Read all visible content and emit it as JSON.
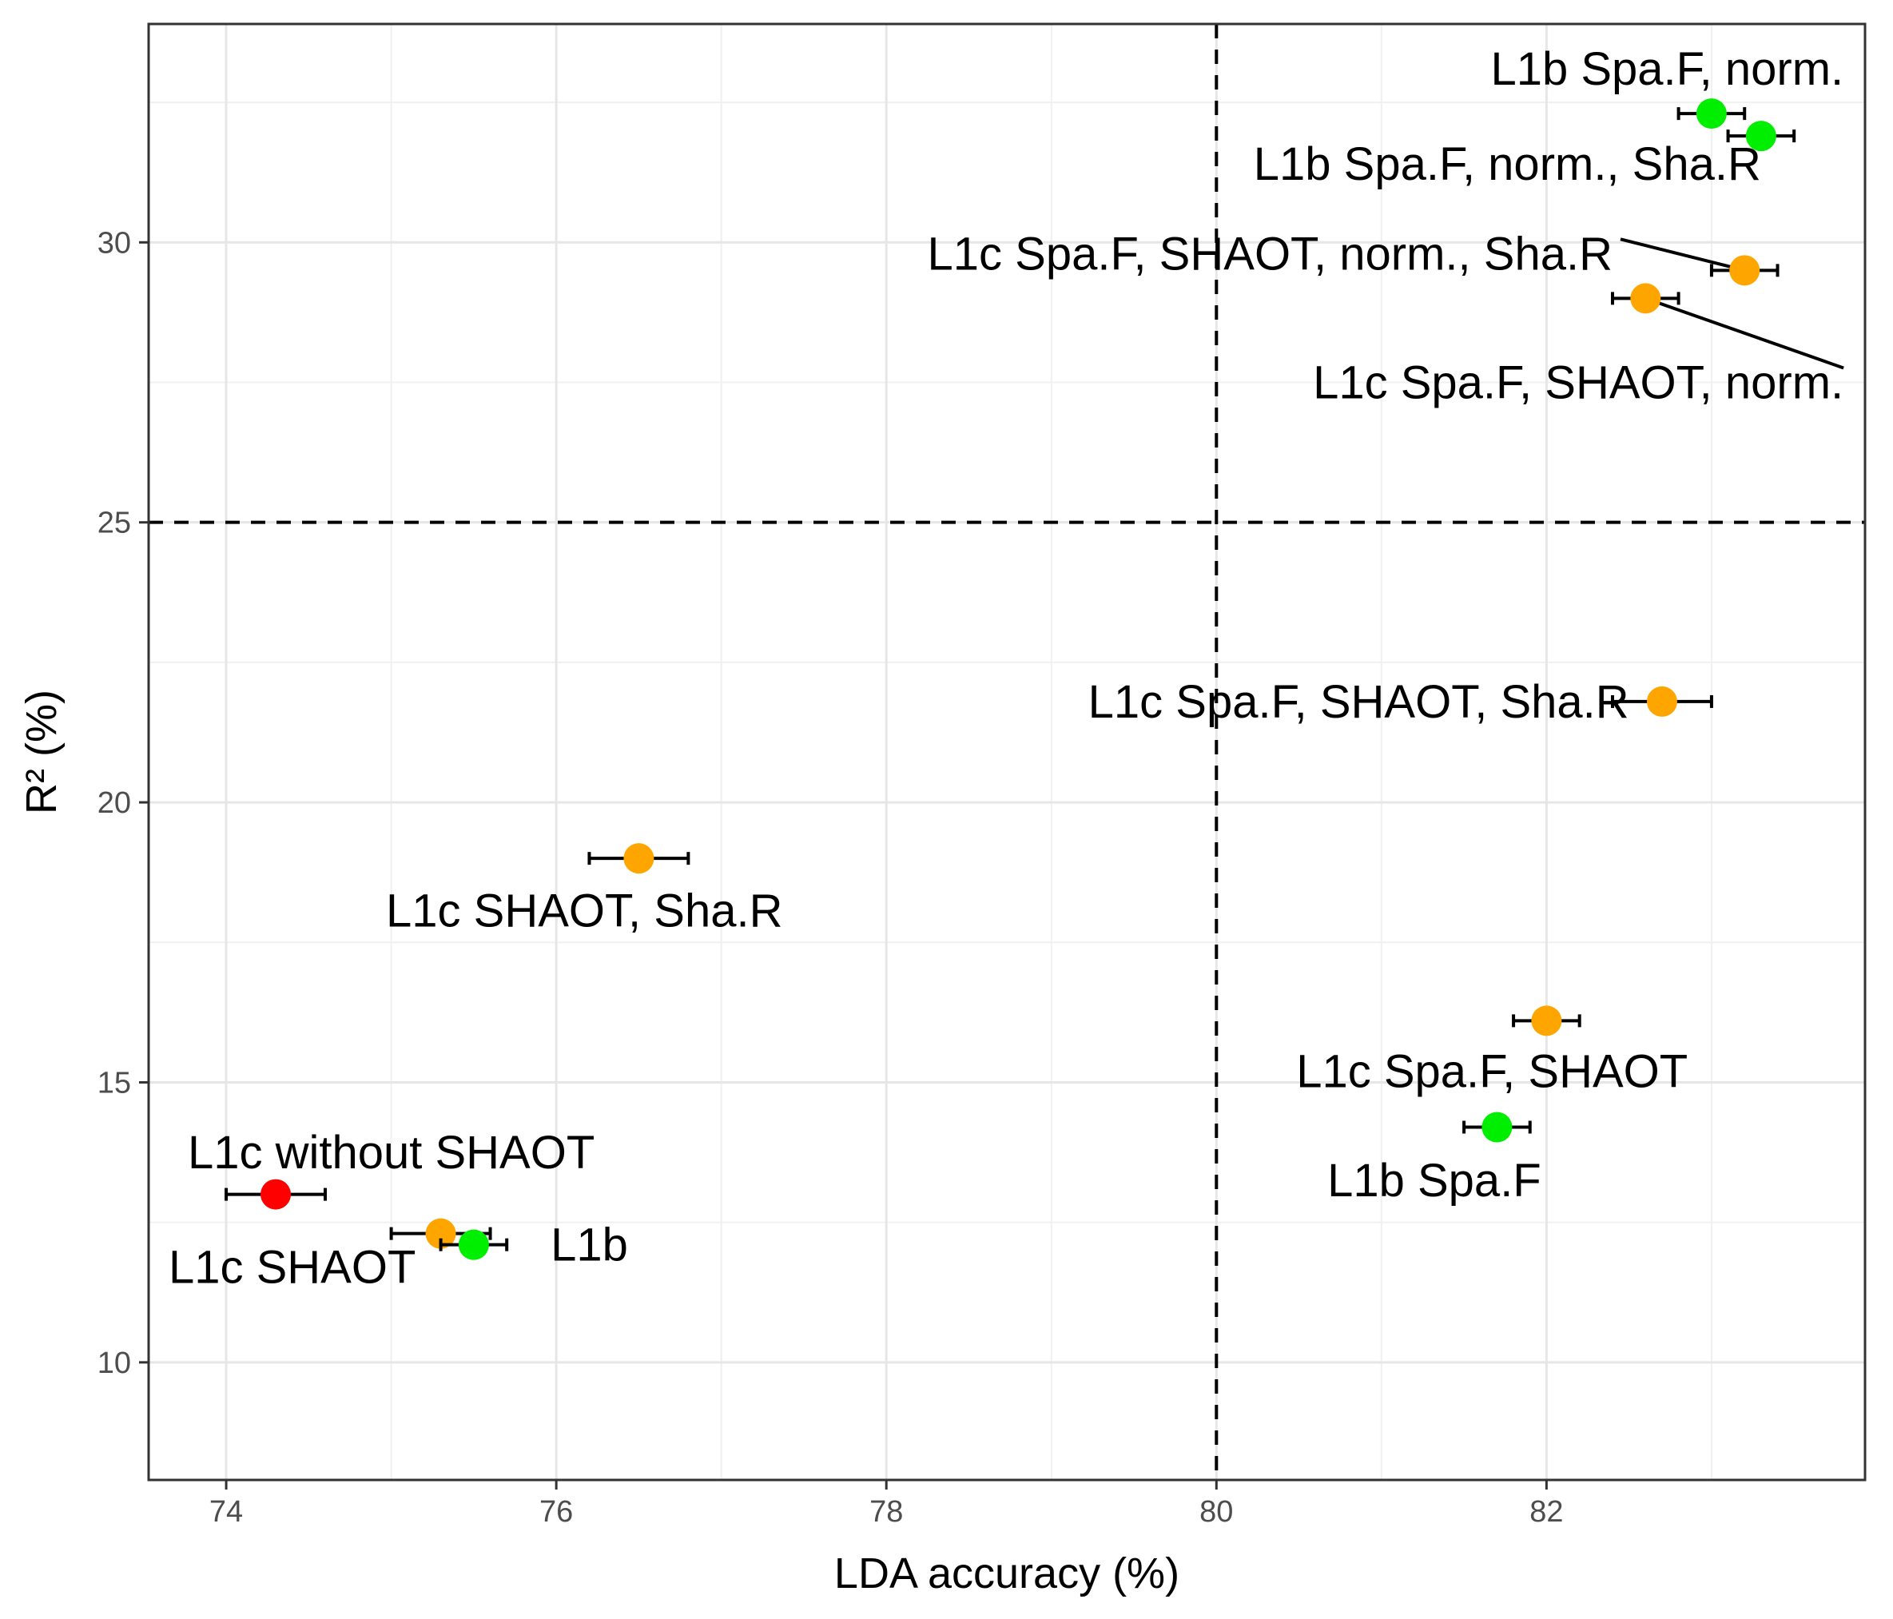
{
  "chart_data": {
    "type": "scatter",
    "xlabel": "LDA accuracy (%)",
    "ylabel": "R² (%)",
    "xlim": [
      73.53,
      83.93
    ],
    "ylim": [
      7.9,
      33.9
    ],
    "x_ticks": [
      74,
      76,
      78,
      80,
      82
    ],
    "x_tick_labels": [
      "74",
      "76",
      "78",
      "80",
      "82"
    ],
    "y_ticks": [
      10,
      15,
      20,
      25,
      30
    ],
    "y_tick_labels": [
      "10",
      "15",
      "20",
      "25",
      "30"
    ],
    "grid": true,
    "reference_lines": {
      "vertical_x": 80,
      "horizontal_y": 25
    },
    "colors": {
      "L1b": "#00ee00",
      "L1c": "#ffa500",
      "without_SHAOT": "#ff0000"
    },
    "points": [
      {
        "label": "L1b Spa.F, norm.",
        "group": "L1b",
        "x": 83.0,
        "y": 32.3,
        "xerr_lo": 82.8,
        "xerr_hi": 83.2,
        "label_dx": 0.8,
        "label_dy": 0.8,
        "anchor": "end"
      },
      {
        "label": "L1b Spa.F, norm., Sha.R",
        "group": "L1b",
        "x": 83.3,
        "y": 31.9,
        "xerr_lo": 83.1,
        "xerr_hi": 83.5,
        "label_dx": 0.0,
        "label_dy": -0.5,
        "anchor": "end"
      },
      {
        "label": "L1c Spa.F, SHAOT, norm., Sha.R",
        "group": "L1c",
        "x": 83.2,
        "y": 29.5,
        "xerr_lo": 83.0,
        "xerr_hi": 83.4,
        "label_dx": -0.8,
        "label_dy": 0.3,
        "anchor": "end",
        "leader": true
      },
      {
        "label": "L1c Spa.F, SHAOT, norm.",
        "group": "L1c",
        "x": 82.6,
        "y": 29.0,
        "xerr_lo": 82.4,
        "xerr_hi": 82.8,
        "label_dx": 1.2,
        "label_dy": -1.5,
        "anchor": "end",
        "leader": true
      },
      {
        "label": "L1c Spa.F, SHAOT, Sha.R",
        "group": "L1c",
        "x": 82.7,
        "y": 21.8,
        "xerr_lo": 82.4,
        "xerr_hi": 83.0,
        "label_dx": -0.2,
        "label_dy": 0.0,
        "anchor": "end"
      },
      {
        "label": "L1c SHAOT, Sha.R",
        "group": "L1c",
        "x": 76.5,
        "y": 19.0,
        "xerr_lo": 76.2,
        "xerr_hi": 76.8,
        "label_dx": -0.33,
        "label_dy": -0.93,
        "anchor": "middle"
      },
      {
        "label": "L1c Spa.F, SHAOT",
        "group": "L1c",
        "x": 82.0,
        "y": 16.1,
        "xerr_lo": 81.8,
        "xerr_hi": 82.2,
        "label_dx": -0.33,
        "label_dy": -0.9,
        "anchor": "middle"
      },
      {
        "label": "L1b Spa.F",
        "group": "L1b",
        "x": 81.7,
        "y": 14.2,
        "xerr_lo": 81.5,
        "xerr_hi": 81.9,
        "label_dx": -0.38,
        "label_dy": -0.95,
        "anchor": "middle"
      },
      {
        "label": "L1c without SHAOT",
        "group": "without_SHAOT",
        "x": 74.3,
        "y": 13.0,
        "xerr_lo": 74.0,
        "xerr_hi": 74.6,
        "label_dx": 0.7,
        "label_dy": 0.75,
        "anchor": "middle"
      },
      {
        "label": "L1c SHAOT",
        "group": "L1c",
        "x": 75.3,
        "y": 12.3,
        "xerr_lo": 75.0,
        "xerr_hi": 75.6,
        "label_dx": -0.9,
        "label_dy": -0.6,
        "anchor": "middle"
      },
      {
        "label": "L1b",
        "group": "L1b",
        "x": 75.5,
        "y": 12.1,
        "xerr_lo": 75.3,
        "xerr_hi": 75.7,
        "label_dx": 0.7,
        "label_dy": 0.0,
        "anchor": "middle"
      }
    ]
  }
}
